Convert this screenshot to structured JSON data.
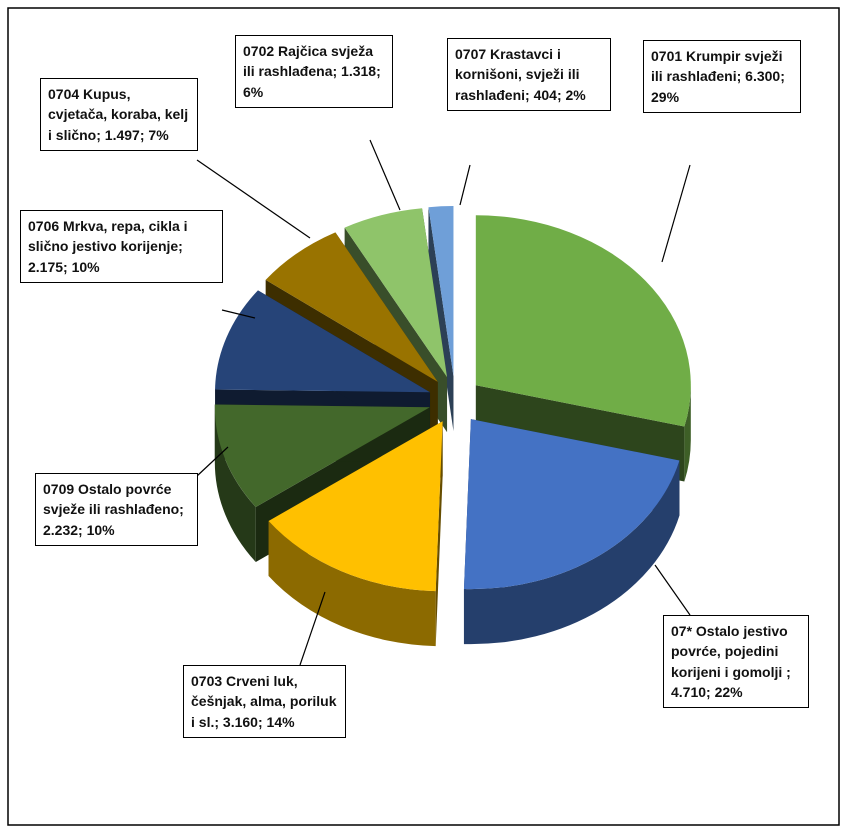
{
  "chart_data": {
    "type": "pie3d",
    "categories": [
      "0701 Krumpir svježi ili rashlađeni",
      "07* Ostalo jestivo povrće, pojedini korijeni i gomolji ",
      "0703 Crveni luk, češnjak, alma, poriluk i sl.",
      "0709 Ostalo povrće svježe ili rashlađeno",
      "0706 Mrkva, repa, cikla i slično jestivo korijenje",
      "0704 Kupus, cvjetača, koraba, kelj i slično",
      "0702 Rajčica svježa ili rashlađena",
      "0707 Krastavci i kornišoni, svježi ili rashlađeni"
    ],
    "values": [
      6300,
      4710,
      3160,
      2232,
      2175,
      1497,
      1318,
      404
    ],
    "value_labels": [
      "6.300",
      "4.710",
      "3.160",
      "2.232",
      "2.175",
      "1.497",
      "1.318",
      "404"
    ],
    "percents": [
      29,
      22,
      14,
      10,
      10,
      7,
      6,
      2
    ],
    "percent_labels": [
      "29%",
      "22%",
      "14%",
      "10%",
      "10%",
      "7%",
      "6%",
      "2%"
    ],
    "label_separator": "; ",
    "colors": [
      "#70ad47",
      "#4472c4",
      "#ffc000",
      "#43682b",
      "#264478",
      "#997300",
      "#8fc46a",
      "#6f9fd8"
    ]
  }
}
